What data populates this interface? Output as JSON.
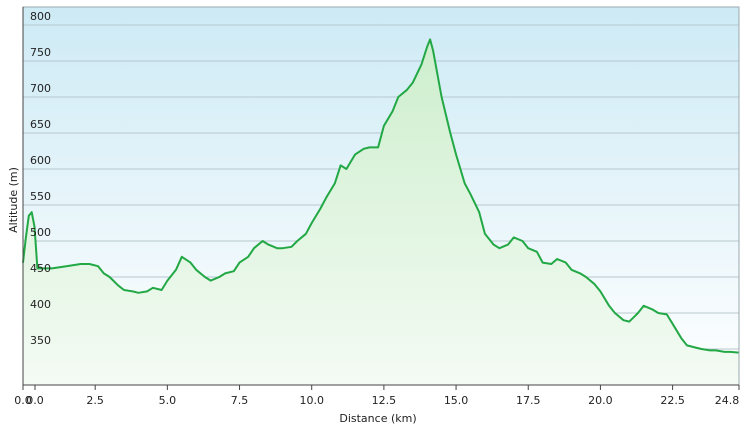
{
  "chart_data": {
    "type": "area",
    "xlabel": "Distance  (km)",
    "ylabel": "Altitude (m)",
    "x_ticks": [
      "0.0",
      "0.0",
      "2.5",
      "5.0",
      "7.5",
      "10.0",
      "12.5",
      "15.0",
      "17.5",
      "20.0",
      "22.5",
      "24.8"
    ],
    "x_tick_values": [
      0,
      0,
      2.5,
      5.0,
      7.5,
      10.0,
      12.5,
      15.0,
      17.5,
      20.0,
      22.5,
      24.8
    ],
    "y_ticks": [
      "350",
      "400",
      "450",
      "500",
      "550",
      "600",
      "650",
      "700",
      "750",
      "800"
    ],
    "y_tick_values": [
      350,
      400,
      450,
      500,
      550,
      600,
      650,
      700,
      750,
      800
    ],
    "xlim": [
      0,
      24.8
    ],
    "ylim": [
      300,
      825
    ],
    "grid": true,
    "colors": {
      "line": "#22a845",
      "fill_top": "#cdeecd",
      "fill_bottom": "#f4fbf4",
      "bg_top": "#cdeaf5",
      "bg_bottom": "#ffffff",
      "grid": "#b8c8d0"
    },
    "series": [
      {
        "x": [
          0,
          0.1,
          0.2,
          0.3,
          0.4,
          0.5,
          1.0,
          1.5,
          2.0,
          2.3,
          2.6,
          2.8,
          3.0,
          3.3,
          3.5,
          3.8,
          4.0,
          4.3,
          4.5,
          4.8,
          5.0,
          5.3,
          5.5,
          5.8,
          6.0,
          6.3,
          6.5,
          6.8,
          7.0,
          7.3,
          7.5,
          7.8,
          8.0,
          8.3,
          8.5,
          8.8,
          9.0,
          9.3,
          9.5,
          9.8,
          10.0,
          10.3,
          10.5,
          10.8,
          11.0,
          11.2,
          11.5,
          11.8,
          12.0,
          12.3,
          12.5,
          12.8,
          13.0,
          13.3,
          13.5,
          13.8,
          14.0,
          14.1,
          14.2,
          14.5,
          14.8,
          15.0,
          15.3,
          15.5,
          15.8,
          16.0,
          16.3,
          16.5,
          16.8,
          17.0,
          17.3,
          17.5,
          17.8,
          18.0,
          18.3,
          18.5,
          18.8,
          19.0,
          19.3,
          19.5,
          19.8,
          20.0,
          20.3,
          20.5,
          20.8,
          21.0,
          21.3,
          21.5,
          21.8,
          22.0,
          22.3,
          22.5,
          22.8,
          23.0,
          23.3,
          23.5,
          23.8,
          24.0,
          24.3,
          24.5,
          24.8
        ],
        "y": [
          470,
          505,
          535,
          540,
          520,
          462,
          462,
          465,
          468,
          468,
          465,
          455,
          450,
          438,
          432,
          430,
          428,
          430,
          435,
          432,
          445,
          460,
          478,
          470,
          460,
          450,
          445,
          450,
          455,
          458,
          470,
          478,
          490,
          500,
          495,
          490,
          490,
          492,
          500,
          510,
          525,
          545,
          560,
          580,
          605,
          600,
          620,
          628,
          630,
          630,
          660,
          680,
          700,
          710,
          720,
          745,
          770,
          780,
          765,
          700,
          650,
          620,
          580,
          565,
          540,
          510,
          495,
          490,
          495,
          505,
          500,
          490,
          485,
          470,
          468,
          475,
          470,
          460,
          455,
          450,
          440,
          430,
          410,
          400,
          390,
          388,
          400,
          410,
          405,
          400,
          398,
          385,
          365,
          355,
          352,
          350,
          348,
          348,
          346,
          346,
          345
        ]
      }
    ]
  }
}
